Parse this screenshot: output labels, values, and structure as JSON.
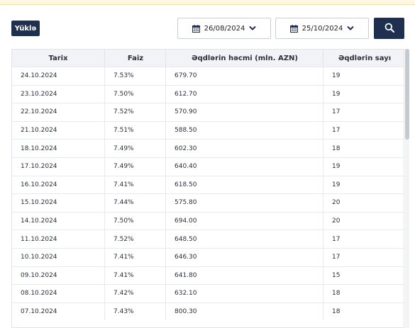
{
  "toolbar": {
    "upload_label": "Yüklə",
    "date_from": "26/08/2024",
    "date_to": "25/10/2024"
  },
  "table": {
    "headers": [
      "Tarix",
      "Faiz",
      "Əqdlərin həcmi (mln. AZN)",
      "Əqdlərin sayı"
    ],
    "rows": [
      [
        "24.10.2024",
        "7.53%",
        "679.70",
        "19"
      ],
      [
        "23.10.2024",
        "7.50%",
        "612.70",
        "19"
      ],
      [
        "22.10.2024",
        "7.52%",
        "570.90",
        "17"
      ],
      [
        "21.10.2024",
        "7.51%",
        "588.50",
        "17"
      ],
      [
        "18.10.2024",
        "7.49%",
        "602.30",
        "18"
      ],
      [
        "17.10.2024",
        "7.49%",
        "640.40",
        "19"
      ],
      [
        "16.10.2024",
        "7.41%",
        "618.50",
        "19"
      ],
      [
        "15.10.2024",
        "7.44%",
        "575.80",
        "20"
      ],
      [
        "14.10.2024",
        "7.50%",
        "694.00",
        "20"
      ],
      [
        "11.10.2024",
        "7.52%",
        "648.50",
        "17"
      ],
      [
        "10.10.2024",
        "7.41%",
        "646.30",
        "17"
      ],
      [
        "09.10.2024",
        "7.41%",
        "641.80",
        "15"
      ],
      [
        "08.10.2024",
        "7.42%",
        "632.10",
        "18"
      ],
      [
        "07.10.2024",
        "7.43%",
        "800.30",
        "18"
      ]
    ]
  },
  "colors": {
    "primary": "#1f2f4f",
    "notice_bg": "#fff7e0",
    "header_bg": "#f1f3f6",
    "border": "#e0e4ea"
  },
  "icons": {
    "calendar": "calendar-icon",
    "dropdown": "chevron-down-icon",
    "search": "search-icon"
  }
}
